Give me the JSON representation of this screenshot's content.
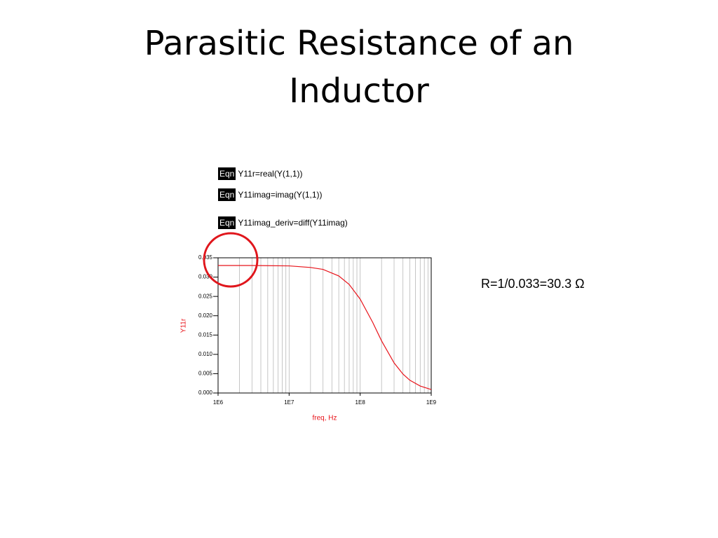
{
  "title": "Parasitic Resistance of an Inductor",
  "equations": [
    {
      "tag": "Eqn",
      "text": "Y11r=real(Y(1,1))"
    },
    {
      "tag": "Eqn",
      "text": "Y11imag=imag(Y(1,1))"
    },
    {
      "tag": "Eqn",
      "text": "Y11imag_deriv=diff(Y11imag)"
    }
  ],
  "annotation": "R=1/0.033=30.3 Ω",
  "chart_data": {
    "type": "line",
    "xlabel": "freq, Hz",
    "ylabel": "Y11r",
    "x": [
      1000000,
      3000000,
      10000000,
      20000000,
      30000000,
      50000000,
      70000000,
      100000000,
      150000000,
      200000000,
      300000000,
      400000000,
      500000000,
      700000000,
      1000000000
    ],
    "values": [
      0.033,
      0.033,
      0.0329,
      0.0325,
      0.032,
      0.0303,
      0.0281,
      0.0243,
      0.0183,
      0.0135,
      0.0078,
      0.0049,
      0.0033,
      0.0018,
      0.0009
    ],
    "color": "#e8141b",
    "xscale": "log",
    "xlim": [
      1000000,
      1000000000
    ],
    "xticks": [
      {
        "value": 1000000,
        "label": "1E6"
      },
      {
        "value": 10000000,
        "label": "1E7"
      },
      {
        "value": 100000000,
        "label": "1E8"
      },
      {
        "value": 1000000000,
        "label": "1E9"
      }
    ],
    "ylim": [
      0,
      0.035
    ],
    "yticks": [
      {
        "value": 0,
        "label": "0.000"
      },
      0.005,
      {
        "value": 0.01,
        "label": "0.010"
      },
      0.015,
      {
        "value": 0.02,
        "label": "0.020"
      },
      0.025,
      {
        "value": 0.03,
        "label": "0.030"
      },
      0.035
    ],
    "grid": "x-minor"
  }
}
